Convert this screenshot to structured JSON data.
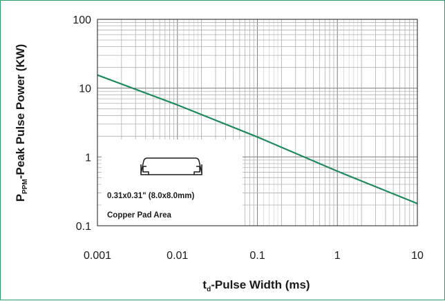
{
  "chart_data": {
    "type": "line",
    "title": "",
    "xlabel_main": "t",
    "xlabel_sub": "d",
    "xlabel_rest": "-Pulse Width (ms)",
    "ylabel_main": "P",
    "ylabel_sub": "PPM",
    "ylabel_rest": "-Peak Pulse Power (KW)",
    "x_scale": "log",
    "y_scale": "log",
    "xlim": [
      0.001,
      10
    ],
    "ylim": [
      0.1,
      100
    ],
    "grid": true,
    "x_ticks": [
      "0.001",
      "0.01",
      "0.1",
      "1",
      "10"
    ],
    "y_ticks": [
      "0.1",
      "1",
      "10",
      "100"
    ],
    "series": [
      {
        "x": [
          0.001,
          0.01,
          0.1,
          1,
          10
        ],
        "y": [
          15.5,
          5.7,
          1.95,
          0.62,
          0.21
        ],
        "color": "#1f8a5c"
      }
    ],
    "annotation": {
      "line1": "0.31x0.31\" (8.0x8.0mm)",
      "line2": "Copper Pad Area"
    }
  }
}
